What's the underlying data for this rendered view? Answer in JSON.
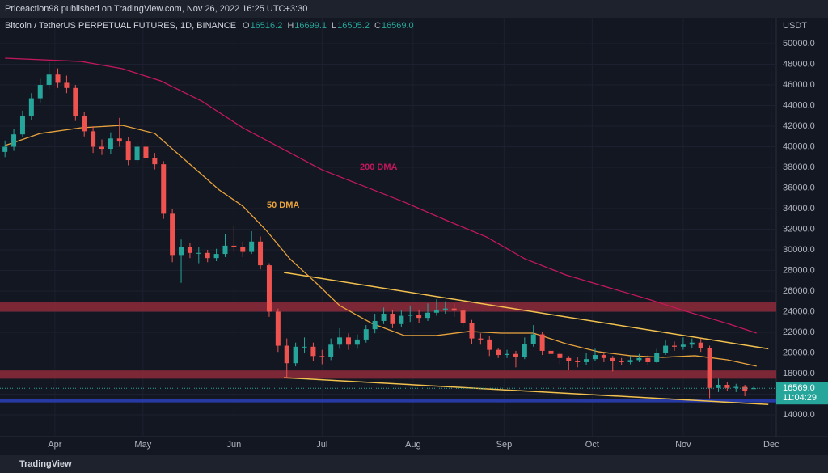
{
  "header": "Priceaction98 published on TradingView.com, Nov 26, 2022 16:25 UTC+3:30",
  "brand": "TradingView",
  "chart_data": {
    "type": "candlestick",
    "title": "Bitcoin / TetherUS PERPETUAL FUTURES, 1D, BINANCE",
    "legend_ohlc": [
      {
        "key": "O",
        "value": 16516.2,
        "label": "16516.2"
      },
      {
        "key": "H",
        "value": 16699.1,
        "label": "16699.1"
      },
      {
        "key": "L",
        "value": 16505.2,
        "label": "16505.2"
      },
      {
        "key": "C",
        "value": 16569,
        "label": "16569.0"
      }
    ],
    "y_unit": "USDT",
    "last_price": {
      "value": 16569,
      "label": "16569.0"
    },
    "countdown": "11:04:29",
    "up_color": "#26a69a",
    "down_color": "#ef5350",
    "xlim": [
      -18.7,
      245.7
    ],
    "xticks": [
      {
        "value": 0,
        "label": "Apr"
      },
      {
        "value": 30,
        "label": "May"
      },
      {
        "value": 61,
        "label": "Jun"
      },
      {
        "value": 91,
        "label": "Jul"
      },
      {
        "value": 122,
        "label": "Aug"
      },
      {
        "value": 153,
        "label": "Sep"
      },
      {
        "value": 183,
        "label": "Oct"
      },
      {
        "value": 214,
        "label": "Nov"
      },
      {
        "value": 244,
        "label": "Dec"
      }
    ],
    "ylim": [
      11880,
      52510
    ],
    "yticks": [
      {
        "value": 14000,
        "label": "14000.0"
      },
      {
        "value": 16000,
        "label": "16000.0"
      },
      {
        "value": 18000,
        "label": "18000.0"
      },
      {
        "value": 20000,
        "label": "20000.0"
      },
      {
        "value": 22000,
        "label": "22000.0"
      },
      {
        "value": 24000,
        "label": "24000.0"
      },
      {
        "value": 26000,
        "label": "26000.0"
      },
      {
        "value": 28000,
        "label": "28000.0"
      },
      {
        "value": 30000,
        "label": "30000.0"
      },
      {
        "value": 32000,
        "label": "32000.0"
      },
      {
        "value": 34000,
        "label": "34000.0"
      },
      {
        "value": 36000,
        "label": "36000.0"
      },
      {
        "value": 38000,
        "label": "38000.0"
      },
      {
        "value": 40000,
        "label": "40000.0"
      },
      {
        "value": 42000,
        "label": "42000.0"
      },
      {
        "value": 44000,
        "label": "44000.0"
      },
      {
        "value": 46000,
        "label": "46000.0"
      },
      {
        "value": 48000,
        "label": "48000.0"
      },
      {
        "value": 50000,
        "label": "50000.0"
      }
    ],
    "x": [
      -17,
      -14,
      -11,
      -8,
      -5,
      -2,
      1,
      4,
      7,
      10,
      13,
      16,
      19,
      22,
      25,
      28,
      31,
      34,
      37,
      40,
      43,
      46,
      49,
      52,
      55,
      58,
      61,
      64,
      67,
      70,
      73,
      76,
      79,
      82,
      85,
      88,
      91,
      94,
      97,
      100,
      103,
      106,
      109,
      112,
      115,
      118,
      121,
      124,
      127,
      130,
      133,
      136,
      139,
      142,
      145,
      148,
      151,
      154,
      157,
      160,
      163,
      166,
      169,
      172,
      175,
      178,
      181,
      184,
      187,
      190,
      193,
      196,
      199,
      202,
      205,
      208,
      211,
      214,
      217,
      220,
      223,
      226,
      229,
      232,
      235,
      238
    ],
    "open": [
      39500,
      40000,
      41200,
      43000,
      44700,
      46000,
      47000,
      46200,
      45700,
      43000,
      41500,
      40000,
      39800,
      40800,
      40500,
      38700,
      40000,
      38900,
      38300,
      33500,
      29500,
      30300,
      29700,
      29700,
      29200,
      29600,
      30400,
      30300,
      29800,
      30800,
      28500,
      24000,
      20700,
      19000,
      20600,
      20600,
      19700,
      19600,
      20800,
      21500,
      20800,
      21300,
      22300,
      23100,
      23800,
      22800,
      23600,
      23700,
      23400,
      23900,
      24200,
      24300,
      24100,
      22900,
      21400,
      21300,
      20300,
      19800,
      19900,
      19600,
      20900,
      21800,
      20200,
      19900,
      19500,
      19200,
      19100,
      19400,
      19800,
      19500,
      19200,
      19100,
      19300,
      19500,
      19100,
      20000,
      20700,
      20600,
      20800,
      21000,
      20500,
      16600,
      16900,
      16600,
      16700,
      16516.2
    ],
    "high": [
      40600,
      41700,
      43500,
      45200,
      46600,
      48200,
      47600,
      46900,
      46000,
      43400,
      42000,
      40700,
      41400,
      42800,
      40900,
      40400,
      40500,
      39400,
      38600,
      34000,
      31000,
      30700,
      30300,
      30000,
      30100,
      31500,
      32300,
      30800,
      31800,
      31300,
      28700,
      24300,
      21400,
      21000,
      21500,
      21000,
      20300,
      21400,
      22400,
      21900,
      21800,
      22700,
      23800,
      24400,
      24200,
      24200,
      24600,
      24200,
      24800,
      25200,
      25000,
      24800,
      24400,
      23200,
      21900,
      21600,
      20500,
      20300,
      20200,
      21500,
      22700,
      22000,
      20500,
      20100,
      19700,
      19600,
      20000,
      20400,
      20000,
      19700,
      19500,
      19700,
      19900,
      19800,
      20400,
      21200,
      21100,
      21500,
      21400,
      21400,
      20700,
      17500,
      17200,
      17000,
      16900,
      16699.1
    ],
    "low": [
      39000,
      39600,
      40900,
      42600,
      44300,
      45600,
      45700,
      45200,
      42500,
      41000,
      39400,
      39200,
      39300,
      40000,
      38200,
      38300,
      38400,
      37800,
      33000,
      28800,
      26800,
      29200,
      28700,
      28800,
      28900,
      29300,
      29800,
      29300,
      29600,
      28100,
      23500,
      20100,
      17600,
      18700,
      20000,
      19200,
      18900,
      19300,
      20400,
      20300,
      20400,
      21000,
      21900,
      22800,
      22400,
      22500,
      23000,
      22900,
      23100,
      23600,
      23800,
      23500,
      22500,
      20900,
      20800,
      19700,
      19500,
      19500,
      18600,
      19400,
      20600,
      19800,
      19300,
      18900,
      18300,
      18600,
      18800,
      19200,
      19100,
      18200,
      18800,
      18900,
      19100,
      18800,
      19000,
      19800,
      20200,
      20300,
      20500,
      20100,
      15600,
      16200,
      16300,
      16200,
      15800,
      16505.2
    ],
    "close": [
      40000,
      41200,
      43000,
      44700,
      46000,
      47000,
      46200,
      45700,
      43000,
      41500,
      40000,
      39800,
      40800,
      40500,
      38700,
      40000,
      38900,
      38300,
      33500,
      29500,
      30300,
      29700,
      29700,
      29200,
      29600,
      30400,
      30300,
      29800,
      30800,
      28500,
      24000,
      20700,
      19000,
      20600,
      20600,
      19700,
      19600,
      20800,
      21500,
      20800,
      21300,
      22300,
      23100,
      23800,
      22800,
      23600,
      23700,
      23400,
      23900,
      24200,
      24300,
      24100,
      22900,
      21400,
      21300,
      20300,
      19800,
      19900,
      19600,
      20900,
      21800,
      20200,
      19900,
      19500,
      19200,
      19100,
      19400,
      19800,
      19500,
      19200,
      19100,
      19300,
      19500,
      19100,
      20000,
      20700,
      20600,
      20800,
      21000,
      20500,
      16600,
      16900,
      16600,
      16700,
      16300,
      16569
    ],
    "series": [
      {
        "name": "200 DMA",
        "color": "#c2185b",
        "x": [
          -17,
          9,
          23,
          36,
          50,
          64,
          78,
          91,
          105,
          119,
          133,
          147,
          160,
          174,
          188,
          202,
          215,
          229,
          239
        ],
        "values": [
          48590,
          48270,
          47570,
          46390,
          44430,
          41840,
          39730,
          37760,
          36200,
          34630,
          32900,
          31250,
          29140,
          27570,
          26390,
          25220,
          24040,
          22860,
          21920
        ]
      },
      {
        "name": "50 DMA",
        "color": "#e8a33d",
        "x": [
          -17,
          -5,
          9,
          23,
          34,
          45,
          56,
          64,
          72,
          80,
          89,
          97,
          108,
          119,
          130,
          141,
          152,
          163,
          174,
          185,
          196,
          207,
          218,
          229,
          239
        ],
        "values": [
          40120,
          41290,
          41840,
          42080,
          41290,
          38550,
          35800,
          34240,
          31880,
          29140,
          26780,
          24590,
          22860,
          21690,
          21690,
          22080,
          21920,
          21920,
          20900,
          20120,
          19730,
          19570,
          19730,
          19330,
          18710
        ]
      }
    ],
    "zones": [
      {
        "from": 24000,
        "to": 24900,
        "color": "#8e2a3a"
      },
      {
        "from": 17500,
        "to": 18300,
        "color": "#8e2a3a"
      },
      {
        "from": 15200,
        "to": 15500,
        "color": "#2b3fb8"
      }
    ],
    "trendlines": [
      {
        "color": "#f2c14e",
        "x": [
          78,
          243
        ],
        "values": [
          27800,
          20400
        ]
      },
      {
        "color": "#f2c14e",
        "x": [
          78,
          243
        ],
        "values": [
          17600,
          15000
        ]
      }
    ]
  }
}
